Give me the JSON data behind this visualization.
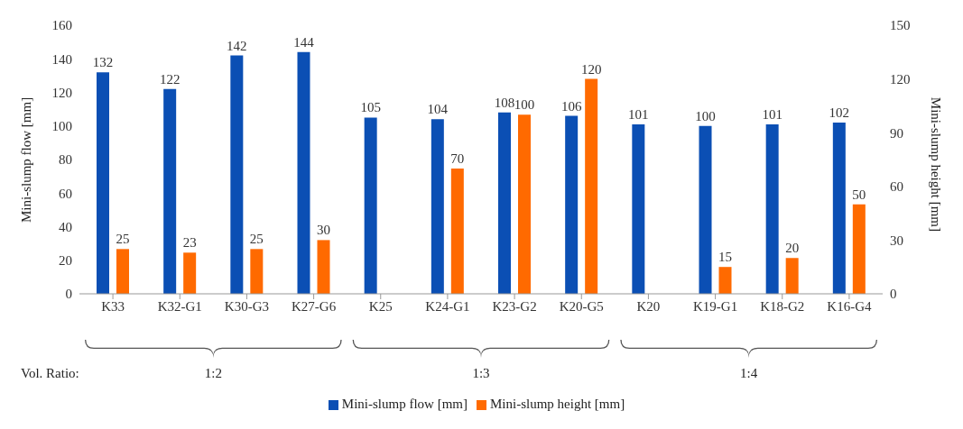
{
  "chart_data": {
    "type": "bar",
    "ylabel": "Mini-slump flow [mm]",
    "y2label": "Mini-slump height [mm]",
    "categories": [
      "K33",
      "K32-G1",
      "K30-G3",
      "K27-G6",
      "K25",
      "K24-G1",
      "K23-G2",
      "K20-G5",
      "K20",
      "K19-G1",
      "K18-G2",
      "K16-G4"
    ],
    "series": [
      {
        "name": "Mini-slump flow [mm]",
        "color": "#0b4fb4",
        "values": [
          132,
          122,
          142,
          144,
          105,
          104,
          108,
          106,
          101,
          100,
          101,
          102
        ]
      },
      {
        "name": "Mini-slump height [mm]",
        "color": "#ff6a00",
        "axis": "y2",
        "values": [
          25,
          23,
          25,
          30,
          null,
          70,
          100,
          120,
          null,
          15,
          20,
          50
        ]
      }
    ],
    "ylim": [
      0,
      160
    ],
    "yticks": [
      0,
      20,
      40,
      60,
      80,
      100,
      120,
      140,
      160
    ],
    "y2lim": [
      0,
      150
    ],
    "y2ticks": [
      0,
      30,
      60,
      90,
      120,
      150
    ],
    "data_labels": true,
    "grid": false,
    "legend": "bottom",
    "annotations": [
      "Vol. Ratio:",
      "1:2",
      "1:3",
      "1:4"
    ]
  }
}
